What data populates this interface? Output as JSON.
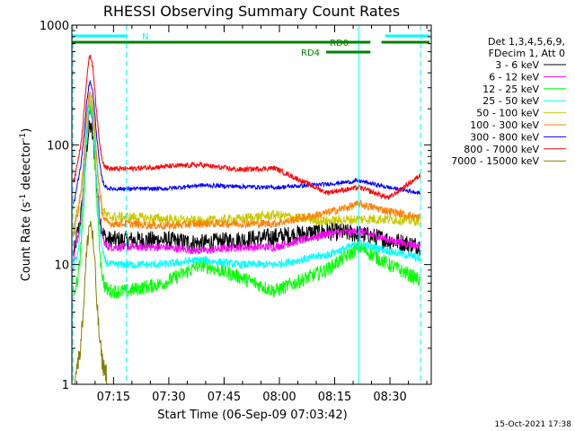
{
  "chart_data": {
    "type": "line",
    "title": "RHESSI Observing Summary Count Rates",
    "xlabel": "Start Time (06-Sep-09 07:03:42)",
    "ylabel": "Count Rate (s",
    "ylabel_sup": "-1",
    "ylabel_tail": " detector",
    "ylabel_close": ")",
    "footer": "15-Oct-2021 17:38",
    "y_scale": "log",
    "ylim": [
      1,
      1000
    ],
    "xlim_minutes": [
      0,
      41
    ],
    "y_ticks": [
      "1",
      "10",
      "100",
      "1000"
    ],
    "x_ticks": [
      {
        "label": "07:15",
        "minute": 11.3
      },
      {
        "label": "07:30",
        "minute": 26.3
      },
      {
        "label": "07:45",
        "minute": 41.3
      },
      {
        "label": "08:00",
        "minute": 56.3
      },
      {
        "label": "08:15",
        "minute": 71.3
      },
      {
        "label": "08:30",
        "minute": 86.3
      }
    ],
    "legend_header": [
      "Det 1,3,4,5,6,9,",
      "FDecim 1, Att 0"
    ],
    "flags": [
      {
        "label": "N",
        "color": "#00ffff",
        "segments": [
          [
            -1,
            15
          ]
        ]
      },
      {
        "label": "RD0",
        "color": "#008000",
        "segments": [
          [
            -1,
            81
          ]
        ]
      },
      {
        "label": "RD4",
        "color": "#008000",
        "segments": [
          [
            69,
            81
          ]
        ]
      }
    ],
    "flags_right": [
      {
        "label": "",
        "color": "#00ffff",
        "segments": [
          [
            85,
            97
          ]
        ]
      },
      {
        "label": "",
        "color": "#008000",
        "segments": [
          [
            84,
            97
          ]
        ]
      }
    ],
    "vlines": [
      {
        "minute": 0.3,
        "color": "#00ffff",
        "style": "dashed"
      },
      {
        "minute": 14.8,
        "color": "#00ffff",
        "style": "dashed"
      },
      {
        "minute": 77.8,
        "color": "#00ffff",
        "style": "solid"
      },
      {
        "minute": 94.6,
        "color": "#00ffff",
        "style": "dashed"
      }
    ],
    "series": [
      {
        "name": "3 - 6 keV",
        "color": "#000000",
        "peak": 140,
        "base": [
          16,
          16,
          15,
          16,
          17,
          19,
          18,
          16,
          14
        ],
        "noise": 0.18
      },
      {
        "name": "6 - 12 keV",
        "color": "#ff00ff",
        "peak": 190,
        "base": [
          14,
          14,
          13,
          14,
          14,
          18,
          19,
          16,
          14
        ],
        "noise": 0.08
      },
      {
        "name": "12 - 25 keV",
        "color": "#00ff00",
        "peak": 210,
        "base": [
          6,
          7,
          10,
          8,
          6,
          9,
          14,
          10,
          7
        ],
        "noise": 0.14
      },
      {
        "name": "25 - 50 keV",
        "color": "#00ffff",
        "peak": 230,
        "base": [
          10,
          10,
          11,
          10,
          10,
          12,
          15,
          13,
          11
        ],
        "noise": 0.08
      },
      {
        "name": "50 - 100 keV",
        "color": "#c8c800",
        "peak": 250,
        "base": [
          25,
          24,
          23,
          24,
          26,
          23,
          24,
          24,
          23
        ],
        "noise": 0.1
      },
      {
        "name": "100 - 300 keV",
        "color": "#ff8000",
        "peak": 270,
        "base": [
          22,
          21,
          22,
          22,
          22,
          27,
          32,
          28,
          24
        ],
        "noise": 0.08
      },
      {
        "name": "300 - 800 keV",
        "color": "#0000ff",
        "peak": 330,
        "base": [
          43,
          43,
          46,
          45,
          44,
          47,
          50,
          44,
          39
        ],
        "noise": 0.04
      },
      {
        "name": "800 - 7000 keV",
        "color": "#ff0000",
        "peak": 540,
        "base": [
          63,
          66,
          68,
          62,
          64,
          40,
          44,
          36,
          60
        ],
        "noise": 0.05
      },
      {
        "name": "7000 - 15000 keV",
        "color": "#808000",
        "peak": 22,
        "base": [
          1.2,
          1,
          1,
          1,
          1,
          1,
          1,
          1,
          1
        ],
        "noise": 0.2
      }
    ]
  }
}
